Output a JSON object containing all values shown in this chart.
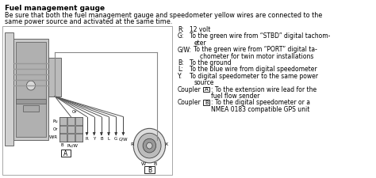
{
  "title": "Fuel management gauge",
  "subtitle1": "Be sure that both the fuel management gauge and speedometer yellow wires are connected to the",
  "subtitle2": "same power source and activated at the same time.",
  "legend_entries": [
    [
      "R:",
      "12 volt"
    ],
    [
      "G:",
      "To the green wire from “STBD” digital tachom-\n    eter"
    ],
    [
      "G/W:",
      "To the green wire from “PORT” digital ta-\n        chometer for twin motor installations"
    ],
    [
      "B:",
      "To the ground"
    ],
    [
      "L:",
      "To the blue wire from digital speedometer"
    ],
    [
      "Y:",
      "To digital speedometer to the same power\n    source"
    ]
  ],
  "coupler_a_text": ": To the extension wire lead for the\n  fuel flow sender",
  "coupler_b_text": ": To the digital speedometer or a\n  NMEA 0183 compatible GPS unit",
  "bg_color": "#ffffff",
  "text_color": "#000000"
}
